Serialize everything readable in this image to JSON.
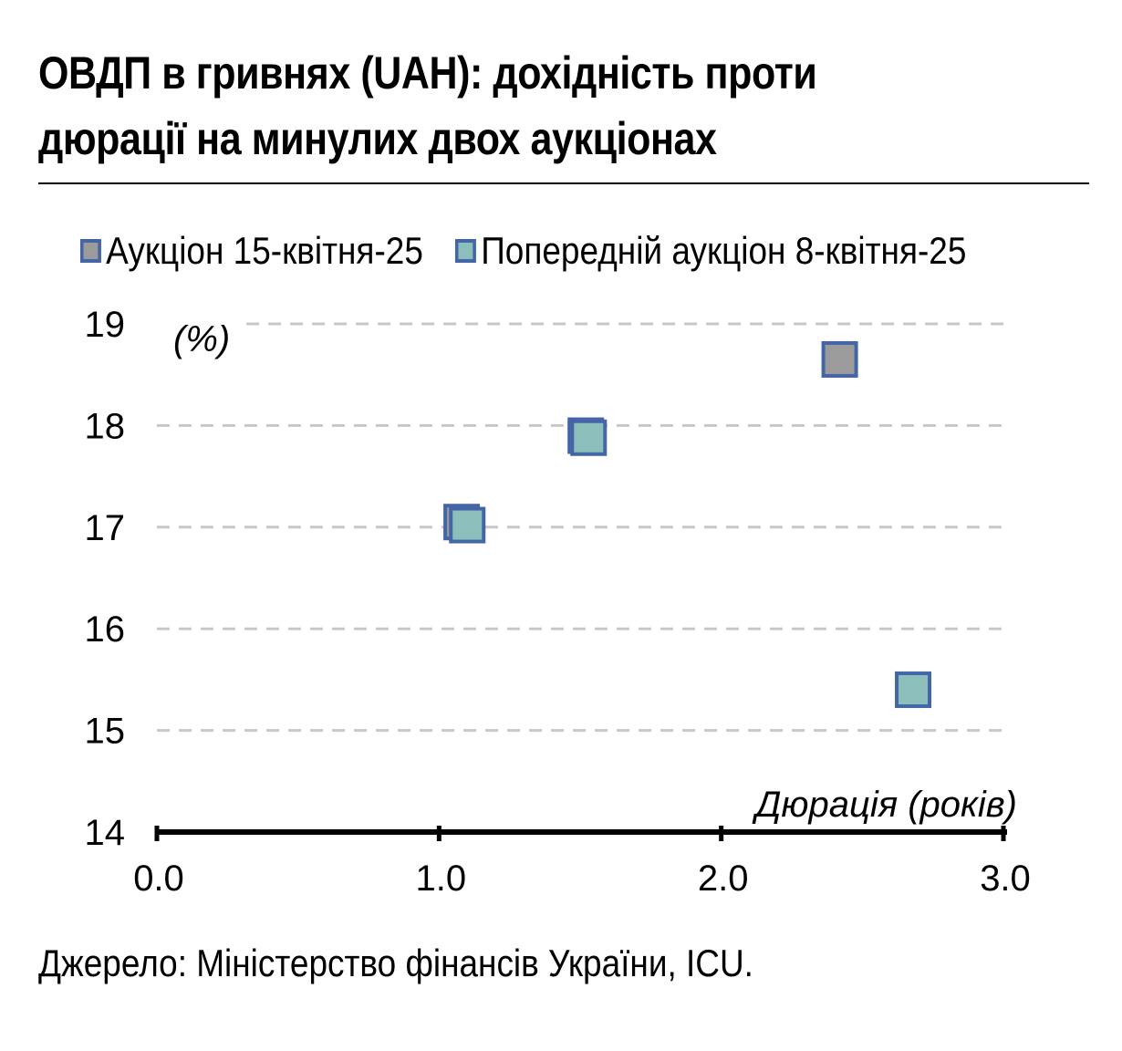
{
  "chart_data": {
    "type": "scatter",
    "title": "ОВДП в гривнях (UAH): дохідність проти дюрації на минулих двох аукціонах",
    "title_lines": [
      "ОВДП в гривнях (UAH): дохідність проти",
      "дюрації на минулих двох аукціонах"
    ],
    "ylabel": "(%)",
    "xlabel": "Дюрація (років)",
    "xlim": [
      0,
      3
    ],
    "ylim": [
      14,
      19
    ],
    "x_ticks": [
      "0.0",
      "1.0",
      "2.0",
      "3.0"
    ],
    "y_ticks": [
      "14",
      "15",
      "16",
      "17",
      "18",
      "19"
    ],
    "grid": true,
    "legend_position": "top-left",
    "series": [
      {
        "name": "Аукціон 15-квітня-25",
        "fill": "#9b9b9b",
        "stroke": "#4566a6",
        "points": [
          {
            "x": 1.08,
            "y": 17.05
          },
          {
            "x": 1.52,
            "y": 17.9
          },
          {
            "x": 2.42,
            "y": 18.65
          }
        ]
      },
      {
        "name": "Попередній аукціон 8-квітня-25",
        "fill": "#8cbfbb",
        "stroke": "#4566a6",
        "points": [
          {
            "x": 1.1,
            "y": 17.02
          },
          {
            "x": 1.53,
            "y": 17.88
          },
          {
            "x": 2.68,
            "y": 15.4
          }
        ]
      }
    ]
  },
  "source": "Джерело: Міністерство фінансів України, ICU."
}
